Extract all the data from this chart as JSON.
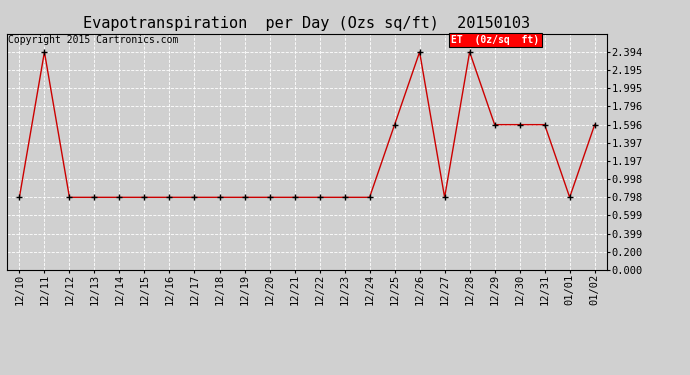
{
  "title": "Evapotranspiration  per Day (Ozs sq/ft)  20150103",
  "copyright": "Copyright 2015 Cartronics.com",
  "legend_label": "ET  (0z/sq  ft)",
  "x_labels": [
    "12/10",
    "12/11",
    "12/12",
    "12/13",
    "12/14",
    "12/15",
    "12/16",
    "12/17",
    "12/18",
    "12/19",
    "12/20",
    "12/21",
    "12/22",
    "12/23",
    "12/24",
    "12/25",
    "12/26",
    "12/27",
    "12/28",
    "12/29",
    "12/30",
    "12/31",
    "01/01",
    "01/02"
  ],
  "y_values": [
    0.798,
    2.394,
    0.798,
    0.798,
    0.798,
    0.798,
    0.798,
    0.798,
    0.798,
    0.798,
    0.798,
    0.798,
    0.798,
    0.798,
    0.798,
    1.596,
    2.394,
    0.798,
    2.394,
    1.596,
    1.596,
    1.596,
    0.798,
    1.596
  ],
  "y_ticks": [
    0.0,
    0.2,
    0.399,
    0.599,
    0.798,
    0.998,
    1.197,
    1.397,
    1.596,
    1.796,
    1.995,
    2.195,
    2.394
  ],
  "y_tick_labels": [
    "0.000",
    "0.200",
    "0.399",
    "0.599",
    "0.798",
    "0.998",
    "1.197",
    "1.397",
    "1.596",
    "1.796",
    "1.995",
    "2.195",
    "2.394"
  ],
  "ylim": [
    0.0,
    2.594
  ],
  "line_color": "#cc0000",
  "marker_color": "#000000",
  "bg_color": "#d0d0d0",
  "plot_bg_color": "#d0d0d0",
  "grid_color": "#ffffff",
  "title_fontsize": 11,
  "axis_fontsize": 7.5,
  "copyright_fontsize": 7
}
